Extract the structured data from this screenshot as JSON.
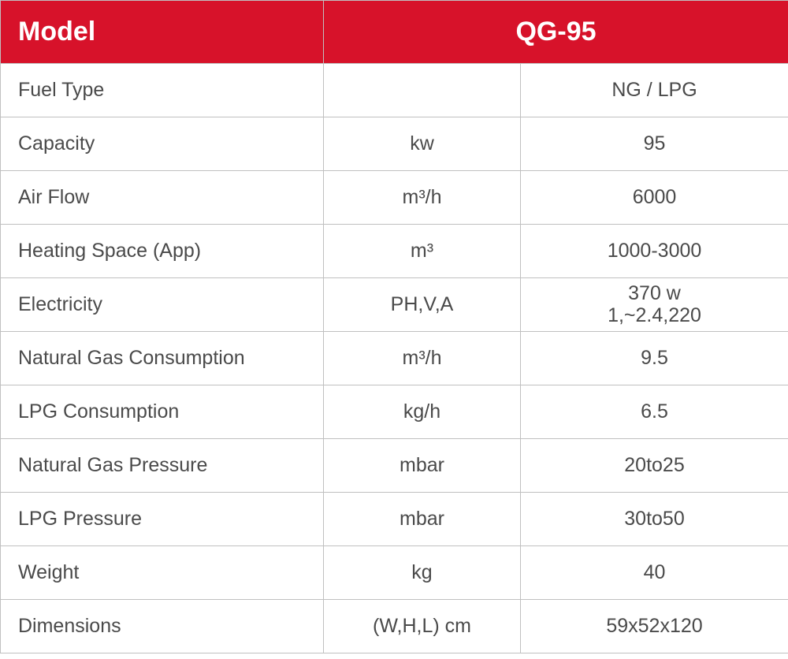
{
  "header": {
    "model_label": "Model",
    "model_value": "QG-95",
    "bg_color": "#d7122a",
    "fg_color": "#ffffff"
  },
  "columns": {
    "label_width": 410,
    "unit_width": 250,
    "value_width": 340
  },
  "border_color": "#c0c0c0",
  "text_color": "#4a4a4a",
  "rows": [
    {
      "label": "Fuel Type",
      "unit": "",
      "value": "NG / LPG"
    },
    {
      "label": "Capacity",
      "unit": "kw",
      "value": "95"
    },
    {
      "label": "Air Flow",
      "unit": "m³/h",
      "value": "6000"
    },
    {
      "label": "Heating Space (App)",
      "unit": "m³",
      "value": "1000-3000"
    },
    {
      "label": "Electricity",
      "unit": "PH,V,A",
      "value_line1": "370 w",
      "value_line2": "1,~2.4,220"
    },
    {
      "label": "Natural Gas Consumption",
      "unit": "m³/h",
      "value": "9.5"
    },
    {
      "label": "LPG Consumption",
      "unit": "kg/h",
      "value": "6.5"
    },
    {
      "label": "Natural Gas Pressure",
      "unit": "mbar",
      "value": "20to25"
    },
    {
      "label": "LPG Pressure",
      "unit": "mbar",
      "value": "30to50"
    },
    {
      "label": "Weight",
      "unit": "kg",
      "value": "40"
    },
    {
      "label": "Dimensions",
      "unit": "(W,H,L) cm",
      "value": "59x52x120"
    }
  ]
}
